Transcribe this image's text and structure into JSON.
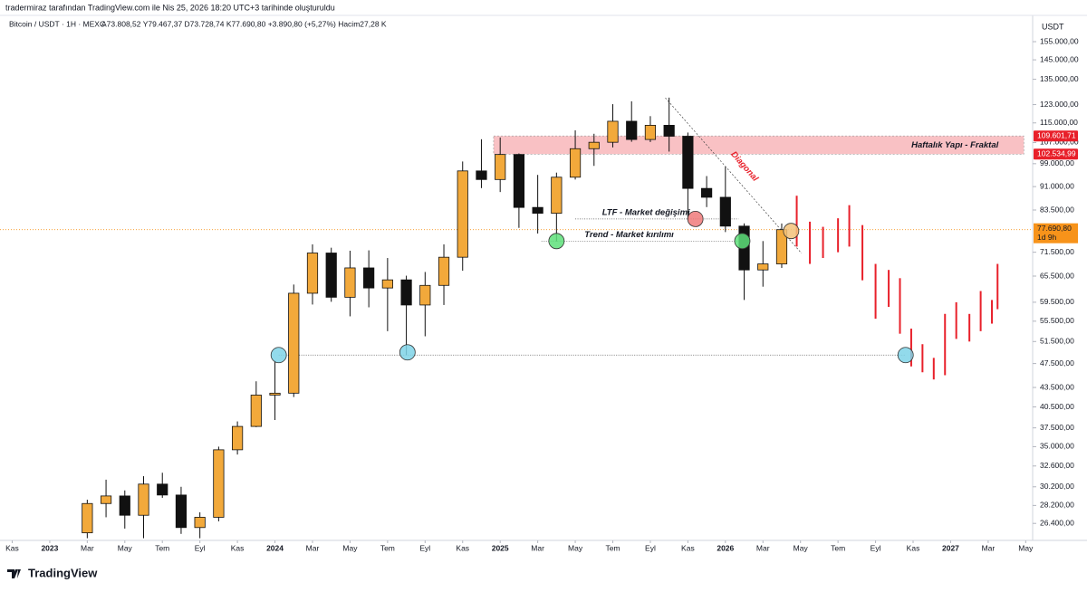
{
  "header": {
    "credit": "tradermiraz tarafından TradingView.com ile Nis 25, 2026 18:20 UTC+3 tarihinde oluşturuldu",
    "symbol": "Bitcoin / USDT · 1H · MEXC",
    "ohlc": "A73.808,52 Y79.467,37 D73.728,74 K77.690,80 +3.890,80 (+5,27%) Hacim27,28 K",
    "currency": "USDT"
  },
  "brand": "TradingView",
  "chart_data": {
    "type": "candlestick",
    "log_scale": true,
    "grid": false,
    "up_color": "#f2a93b",
    "down_color": "#111111",
    "xlim": [
      -2.65,
      52.37
    ],
    "ylim": [
      24800,
      159200
    ],
    "xticks": [
      {
        "value": -2,
        "label": "Kas"
      },
      {
        "value": 0,
        "label": "2023"
      },
      {
        "value": 2,
        "label": "Mar"
      },
      {
        "value": 4,
        "label": "May"
      },
      {
        "value": 6,
        "label": "Tem"
      },
      {
        "value": 8,
        "label": "Eyl"
      },
      {
        "value": 10,
        "label": "Kas"
      },
      {
        "value": 12,
        "label": "2024"
      },
      {
        "value": 14,
        "label": "Mar"
      },
      {
        "value": 16,
        "label": "May"
      },
      {
        "value": 18,
        "label": "Tem"
      },
      {
        "value": 20,
        "label": "Eyl"
      },
      {
        "value": 22,
        "label": "Kas"
      },
      {
        "value": 24,
        "label": "2025"
      },
      {
        "value": 26,
        "label": "Mar"
      },
      {
        "value": 28,
        "label": "May"
      },
      {
        "value": 30,
        "label": "Tem"
      },
      {
        "value": 32,
        "label": "Eyl"
      },
      {
        "value": 34,
        "label": "Kas"
      },
      {
        "value": 36,
        "label": "2026"
      },
      {
        "value": 38,
        "label": "Mar"
      },
      {
        "value": 40,
        "label": "May"
      },
      {
        "value": 42,
        "label": "Tem"
      },
      {
        "value": 44,
        "label": "Eyl"
      },
      {
        "value": 46,
        "label": "Kas"
      },
      {
        "value": 48,
        "label": "2027"
      },
      {
        "value": 50,
        "label": "Mar"
      },
      {
        "value": 52,
        "label": "May"
      }
    ],
    "yticks": [
      {
        "value": 155000,
        "label": "155.000,00"
      },
      {
        "value": 145000,
        "label": "145.000,00"
      },
      {
        "value": 135000,
        "label": "135.000,00"
      },
      {
        "value": 123000,
        "label": "123.000,00"
      },
      {
        "value": 115000,
        "label": "115.000,00"
      },
      {
        "value": 107000,
        "label": "107.000,00"
      },
      {
        "value": 99000,
        "label": "99.000,00"
      },
      {
        "value": 91000,
        "label": "91.000,00"
      },
      {
        "value": 83500,
        "label": "83.500,00"
      },
      {
        "value": 71500,
        "label": "71.500,00"
      },
      {
        "value": 65500,
        "label": "65.500,00"
      },
      {
        "value": 59500,
        "label": "59.500,00"
      },
      {
        "value": 55500,
        "label": "55.500,00"
      },
      {
        "value": 51500,
        "label": "51.500,00"
      },
      {
        "value": 47500,
        "label": "47.500,00"
      },
      {
        "value": 43500,
        "label": "43.500,00"
      },
      {
        "value": 40500,
        "label": "40.500,00"
      },
      {
        "value": 37500,
        "label": "37.500,00"
      },
      {
        "value": 35000,
        "label": "35.000,00"
      },
      {
        "value": 32600,
        "label": "32.600,00"
      },
      {
        "value": 30200,
        "label": "30.200,00"
      },
      {
        "value": 28200,
        "label": "28.200,00"
      },
      {
        "value": 26400,
        "label": "26.400,00"
      }
    ],
    "candles": [
      [
        2,
        25500,
        28800,
        25000,
        28400
      ],
      [
        3,
        28400,
        31000,
        27000,
        29200
      ],
      [
        4,
        29200,
        29800,
        25900,
        27200
      ],
      [
        5,
        27200,
        31400,
        25000,
        30500
      ],
      [
        6,
        30500,
        31800,
        29000,
        29300
      ],
      [
        7,
        29300,
        30200,
        25400,
        26000
      ],
      [
        8,
        26000,
        27500,
        25000,
        27000
      ],
      [
        9,
        27000,
        35000,
        26600,
        34600
      ],
      [
        10,
        34600,
        38400,
        34000,
        37700
      ],
      [
        11,
        37700,
        44500,
        37600,
        42300
      ],
      [
        12,
        42300,
        48000,
        38600,
        42600
      ],
      [
        13,
        42600,
        63500,
        42000,
        61500
      ],
      [
        14,
        61500,
        73600,
        59000,
        71300
      ],
      [
        15,
        71300,
        72700,
        59600,
        60600
      ],
      [
        16,
        60600,
        71900,
        56500,
        67500
      ],
      [
        17,
        67500,
        72000,
        58400,
        62700
      ],
      [
        18,
        62700,
        70000,
        53500,
        64600
      ],
      [
        19,
        64600,
        65600,
        49000,
        58900
      ],
      [
        20,
        58900,
        66500,
        52500,
        63300
      ],
      [
        21,
        63300,
        73600,
        58900,
        70200
      ],
      [
        22,
        70200,
        99800,
        66800,
        96400
      ],
      [
        23,
        96400,
        108300,
        90500,
        93400
      ],
      [
        24,
        93400,
        109000,
        89200,
        102400
      ],
      [
        25,
        102400,
        102800,
        78200,
        84300
      ],
      [
        26,
        84300,
        95000,
        76600,
        82500
      ],
      [
        27,
        82500,
        95800,
        74400,
        94200
      ],
      [
        28,
        94200,
        111900,
        93400,
        104600
      ],
      [
        29,
        104600,
        110500,
        98200,
        107100
      ],
      [
        30,
        107100,
        123200,
        105100,
        115700
      ],
      [
        31,
        115700,
        124500,
        107300,
        108200
      ],
      [
        32,
        108200,
        117900,
        107200,
        114000
      ],
      [
        33,
        114000,
        126200,
        103500,
        109500
      ],
      [
        34,
        109500,
        111000,
        80600,
        90400
      ],
      [
        35,
        90400,
        94600,
        84400,
        87500
      ],
      [
        36,
        87500,
        97900,
        77000,
        78700
      ],
      [
        37,
        78700,
        79500,
        60000,
        67000
      ],
      [
        38,
        67000,
        74500,
        63000,
        68500
      ],
      [
        39,
        68500,
        79467,
        67500,
        77690
      ]
    ],
    "projection": {
      "color": "#e8202a",
      "bars": [
        [
          39.8,
          88000,
          73000
        ],
        [
          40.5,
          80000,
          68500
        ],
        [
          41.2,
          78500,
          70000
        ],
        [
          42,
          81000,
          71500
        ],
        [
          42.6,
          85000,
          73000
        ],
        [
          43.3,
          79000,
          64500
        ],
        [
          44,
          68500,
          56000
        ],
        [
          44.7,
          67000,
          58500
        ],
        [
          45.3,
          65000,
          53000
        ],
        [
          45.9,
          54000,
          47000
        ],
        [
          46.5,
          51000,
          46000
        ],
        [
          47.1,
          48500,
          44800
        ],
        [
          47.7,
          57000,
          45500
        ],
        [
          48.3,
          59500,
          52000
        ],
        [
          49,
          57000,
          51500
        ],
        [
          49.6,
          62000,
          53500
        ],
        [
          50.2,
          60000,
          55000
        ],
        [
          50.5,
          68500,
          58000
        ]
      ]
    },
    "zone": {
      "name": "Haftalık Yapı - Fraktal",
      "high": {
        "value": 109601.71,
        "label": "109.601,71"
      },
      "low": {
        "value": 102534.99,
        "label": "102.534,99"
      },
      "x0": 23.65,
      "x1": 51.9,
      "color": "#e8202a"
    },
    "last_price": {
      "value": 77690.8,
      "label": "77.690,80",
      "countdown": "1d 9h",
      "color": "#f7931a"
    },
    "diagonal": {
      "name": "Diagonal",
      "x0": 32.8,
      "y0": 126100,
      "x1": 40.06,
      "y1": 71200,
      "color": "#e8202a"
    },
    "levels": [
      {
        "name": "LTF - Market değişimi",
        "value": 80800,
        "x0": 28,
        "x1": 36.7
      },
      {
        "name": "Trend - Market kırılımı",
        "value": 74500,
        "x0": 26.2,
        "x1": 36.7
      },
      {
        "value": 49000,
        "x0": 12.2,
        "x1": 45.6
      }
    ],
    "markers": [
      {
        "x": 12.2,
        "value": 49000,
        "color": "#7fd3e8"
      },
      {
        "x": 19.06,
        "value": 49500,
        "color": "#7fd3e8"
      },
      {
        "x": 45.6,
        "value": 49000,
        "color": "#7fd3e8"
      },
      {
        "x": 27,
        "value": 74500,
        "color": "#5ee07a"
      },
      {
        "x": 36.9,
        "value": 74500,
        "color": "#5ee07a"
      },
      {
        "x": 34.4,
        "value": 80800,
        "color": "#f07a7a"
      },
      {
        "x": 39.5,
        "value": 77300,
        "color": "#f3c27a"
      }
    ]
  }
}
